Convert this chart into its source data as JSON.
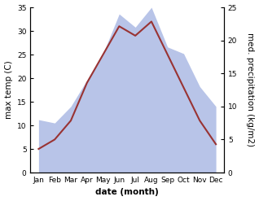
{
  "months": [
    "Jan",
    "Feb",
    "Mar",
    "Apr",
    "May",
    "Jun",
    "Jul",
    "Aug",
    "Sep",
    "Oct",
    "Nov",
    "Dec"
  ],
  "month_x": [
    1,
    2,
    3,
    4,
    5,
    6,
    7,
    8,
    9,
    10,
    11,
    12
  ],
  "temperature": [
    5.0,
    7.0,
    11.0,
    19.0,
    25.0,
    31.0,
    29.0,
    32.0,
    25.0,
    18.0,
    11.0,
    6.0
  ],
  "precipitation": [
    8.0,
    7.5,
    10.0,
    14.0,
    18.0,
    24.0,
    22.0,
    25.0,
    19.0,
    18.0,
    13.0,
    10.0
  ],
  "temp_color": "#993333",
  "precip_fill_color": "#b8c4e8",
  "precip_edge_color": "#b8c4e8",
  "temp_ylim": [
    0,
    35
  ],
  "precip_ylim": [
    0,
    25
  ],
  "temp_yticks": [
    0,
    5,
    10,
    15,
    20,
    25,
    30,
    35
  ],
  "precip_yticks": [
    0,
    5,
    10,
    15,
    20,
    25
  ],
  "xlabel": "date (month)",
  "ylabel_left": "max temp (C)",
  "ylabel_right": "med. precipitation (kg/m2)",
  "label_fontsize": 7.5,
  "tick_fontsize": 6.5
}
